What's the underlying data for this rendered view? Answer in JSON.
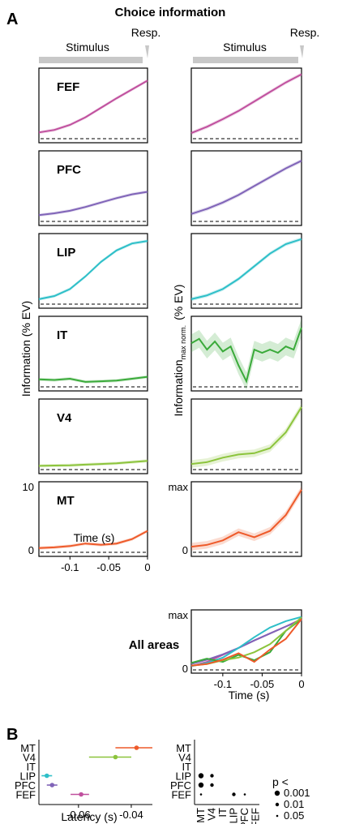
{
  "figure": {
    "panel_a": "A",
    "panel_b": "B",
    "title": "Choice information",
    "stimulus_label": "Stimulus",
    "response_label": "Resp.",
    "left_ylabel": "Information (% EV)",
    "right_ylabel_main": "Information",
    "right_ylabel_sub": "max norm.",
    "right_ylabel_units": "(% EV)",
    "time_label": "Time (s)",
    "all_areas_label": "All areas",
    "latency_label": "Latency (s)",
    "p_label": "p <"
  },
  "colors": {
    "FEF": "#c0509e",
    "PFC": "#8064b8",
    "LIP": "#2ebfc8",
    "IT": "#3aaa3a",
    "V4": "#8cc43c",
    "MT": "#ee5a2a",
    "bar": "#c8c8c8"
  },
  "chart_data": [
    {
      "type": "line",
      "title": "",
      "xlabel": "Time (s)",
      "ylabel": "Information (% EV)",
      "xlim": [
        -0.14,
        0
      ],
      "ylim": [
        0,
        10
      ],
      "x_ticks": [
        "-0.1",
        "-0.05",
        "0"
      ],
      "y_ticks": [
        "0",
        "10"
      ],
      "panels": [
        {
          "name": "FEF",
          "x": [
            -0.14,
            -0.12,
            -0.1,
            -0.08,
            -0.06,
            -0.04,
            -0.02,
            0
          ],
          "y": [
            0.6,
            1.0,
            1.8,
            3.0,
            4.5,
            6.0,
            7.4,
            8.8
          ]
        },
        {
          "name": "PFC",
          "x": [
            -0.14,
            -0.12,
            -0.1,
            -0.08,
            -0.06,
            -0.04,
            -0.02,
            0
          ],
          "y": [
            0.6,
            0.9,
            1.3,
            1.9,
            2.6,
            3.3,
            3.9,
            4.3
          ]
        },
        {
          "name": "LIP",
          "x": [
            -0.14,
            -0.12,
            -0.1,
            -0.08,
            -0.06,
            -0.04,
            -0.02,
            0
          ],
          "y": [
            0.4,
            0.9,
            2.0,
            4.0,
            6.3,
            8.1,
            9.2,
            9.6
          ]
        },
        {
          "name": "IT",
          "x": [
            -0.14,
            -0.12,
            -0.1,
            -0.08,
            -0.06,
            -0.04,
            -0.02,
            0
          ],
          "y": [
            0.8,
            0.7,
            0.9,
            0.4,
            0.5,
            0.6,
            0.9,
            1.2
          ]
        },
        {
          "name": "V4",
          "x": [
            -0.14,
            -0.12,
            -0.1,
            -0.08,
            -0.06,
            -0.04,
            -0.02,
            0
          ],
          "y": [
            0.2,
            0.25,
            0.3,
            0.4,
            0.5,
            0.6,
            0.8,
            1.0
          ]
        },
        {
          "name": "MT",
          "x": [
            -0.14,
            -0.12,
            -0.1,
            -0.08,
            -0.06,
            -0.04,
            -0.02,
            0
          ],
          "y": [
            0.3,
            0.4,
            0.6,
            1.0,
            0.8,
            1.0,
            1.7,
            3.0
          ]
        }
      ]
    },
    {
      "type": "line",
      "title": "",
      "xlabel": "Time (s)",
      "ylabel": "Information max norm. (% EV)",
      "xlim": [
        -0.14,
        0
      ],
      "ylim": [
        0,
        1
      ],
      "x_ticks": [
        "-0.1",
        "-0.05",
        "0"
      ],
      "y_ticks": [
        "0",
        "max"
      ],
      "panels": [
        {
          "name": "FEF",
          "x": [
            -0.14,
            -0.12,
            -0.1,
            -0.08,
            -0.06,
            -0.04,
            -0.02,
            0
          ],
          "y": [
            0.05,
            0.15,
            0.27,
            0.4,
            0.55,
            0.7,
            0.85,
            0.98
          ]
        },
        {
          "name": "PFC",
          "x": [
            -0.14,
            -0.12,
            -0.1,
            -0.08,
            -0.06,
            -0.04,
            -0.02,
            0
          ],
          "y": [
            0.08,
            0.16,
            0.26,
            0.38,
            0.52,
            0.66,
            0.8,
            0.92
          ]
        },
        {
          "name": "LIP",
          "x": [
            -0.14,
            -0.12,
            -0.1,
            -0.08,
            -0.06,
            -0.04,
            -0.02,
            0
          ],
          "y": [
            0.04,
            0.1,
            0.2,
            0.36,
            0.56,
            0.76,
            0.91,
            0.99
          ]
        },
        {
          "name": "IT",
          "x": [
            -0.14,
            -0.13,
            -0.12,
            -0.11,
            -0.1,
            -0.09,
            -0.08,
            -0.07,
            -0.06,
            -0.05,
            -0.04,
            -0.03,
            -0.02,
            -0.01,
            0
          ],
          "y": [
            0.65,
            0.72,
            0.55,
            0.68,
            0.52,
            0.6,
            0.3,
            0.05,
            0.55,
            0.5,
            0.55,
            0.5,
            0.6,
            0.55,
            0.9
          ]
        },
        {
          "name": "V4",
          "x": [
            -0.14,
            -0.12,
            -0.1,
            -0.08,
            -0.06,
            -0.04,
            -0.02,
            0
          ],
          "y": [
            0.05,
            0.08,
            0.15,
            0.2,
            0.22,
            0.3,
            0.55,
            0.95
          ]
        },
        {
          "name": "MT",
          "x": [
            -0.14,
            -0.12,
            -0.1,
            -0.08,
            -0.06,
            -0.04,
            -0.02,
            0
          ],
          "y": [
            0.05,
            0.08,
            0.15,
            0.28,
            0.2,
            0.3,
            0.55,
            0.95
          ]
        }
      ]
    },
    {
      "type": "line",
      "title": "All areas",
      "xlabel": "Time (s)",
      "ylabel": "",
      "xlim": [
        -0.14,
        0
      ],
      "ylim": [
        0,
        1
      ],
      "x_ticks": [
        "-0.1",
        "-0.05",
        "0"
      ],
      "y_ticks": [
        "0",
        "max"
      ],
      "series": [
        {
          "name": "FEF",
          "x": [
            -0.14,
            -0.12,
            -0.1,
            -0.08,
            -0.06,
            -0.04,
            -0.02,
            0
          ],
          "y": [
            0.04,
            0.12,
            0.25,
            0.38,
            0.52,
            0.65,
            0.78,
            0.92
          ]
        },
        {
          "name": "PFC",
          "x": [
            -0.14,
            -0.12,
            -0.1,
            -0.08,
            -0.06,
            -0.04,
            -0.02,
            0
          ],
          "y": [
            0.08,
            0.16,
            0.26,
            0.38,
            0.52,
            0.65,
            0.78,
            0.9
          ]
        },
        {
          "name": "LIP",
          "x": [
            -0.14,
            -0.12,
            -0.1,
            -0.08,
            -0.06,
            -0.04,
            -0.02,
            0
          ],
          "y": [
            0.04,
            0.1,
            0.2,
            0.38,
            0.58,
            0.76,
            0.88,
            0.96
          ]
        },
        {
          "name": "IT",
          "x": [
            -0.14,
            -0.12,
            -0.1,
            -0.08,
            -0.06,
            -0.04,
            -0.02,
            0
          ],
          "y": [
            0.1,
            0.18,
            0.12,
            0.25,
            0.15,
            0.3,
            0.7,
            0.92
          ]
        },
        {
          "name": "V4",
          "x": [
            -0.14,
            -0.12,
            -0.1,
            -0.08,
            -0.06,
            -0.04,
            -0.02,
            0
          ],
          "y": [
            0.05,
            0.08,
            0.15,
            0.2,
            0.3,
            0.45,
            0.7,
            0.95
          ]
        },
        {
          "name": "MT",
          "x": [
            -0.14,
            -0.12,
            -0.1,
            -0.08,
            -0.06,
            -0.04,
            -0.02,
            0
          ],
          "y": [
            0.05,
            0.08,
            0.16,
            0.28,
            0.12,
            0.35,
            0.55,
            0.92
          ]
        }
      ]
    },
    {
      "type": "scatter",
      "title": "",
      "xlabel": "Latency (s)",
      "ylabel": "",
      "xlim": [
        -0.075,
        -0.032
      ],
      "x_ticks": [
        "-0.06",
        "-0.04"
      ],
      "categories": [
        "MT",
        "V4",
        "IT",
        "LIP",
        "PFC",
        "FEF"
      ],
      "points": [
        {
          "name": "MT",
          "value": -0.038,
          "ci": [
            -0.046,
            -0.032
          ]
        },
        {
          "name": "V4",
          "value": -0.046,
          "ci": [
            -0.056,
            -0.04
          ]
        },
        {
          "name": "LIP",
          "value": -0.072,
          "ci": [
            -0.074,
            -0.07
          ]
        },
        {
          "name": "PFC",
          "value": -0.07,
          "ci": [
            -0.072,
            -0.068
          ]
        },
        {
          "name": "FEF",
          "value": -0.059,
          "ci": [
            -0.063,
            -0.056
          ]
        }
      ]
    },
    {
      "type": "table",
      "title": "",
      "rows": [
        "MT",
        "V4",
        "IT",
        "LIP",
        "PFC",
        "FEF"
      ],
      "columns": [
        "MT",
        "V4",
        "IT",
        "LIP",
        "PFC",
        "FEF"
      ],
      "cells": [
        {
          "row": "LIP",
          "col": "MT",
          "p": 0.001
        },
        {
          "row": "LIP",
          "col": "V4",
          "p": 0.01
        },
        {
          "row": "PFC",
          "col": "MT",
          "p": 0.001
        },
        {
          "row": "PFC",
          "col": "V4",
          "p": 0.01
        },
        {
          "row": "FEF",
          "col": "MT",
          "p": 0.05
        },
        {
          "row": "FEF",
          "col": "LIP",
          "p": 0.01
        },
        {
          "row": "FEF",
          "col": "PFC",
          "p": 0.05
        }
      ],
      "legend": [
        {
          "label": "0.001",
          "p": 0.001
        },
        {
          "label": "0.01",
          "p": 0.01
        },
        {
          "label": "0.05",
          "p": 0.05
        }
      ]
    }
  ]
}
